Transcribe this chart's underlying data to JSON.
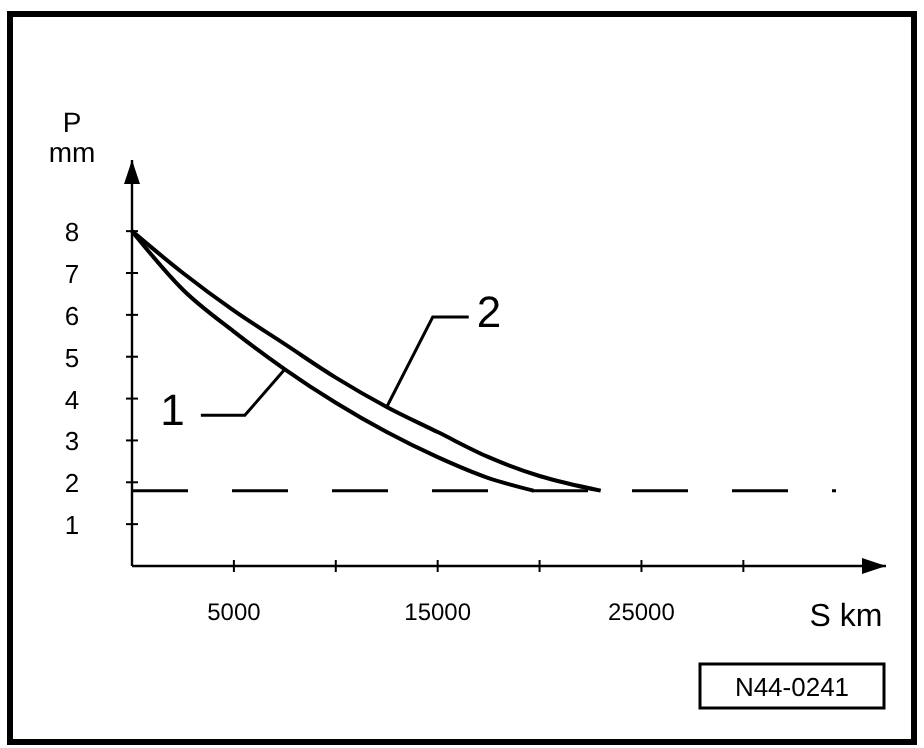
{
  "chart_data": {
    "type": "line",
    "xlabel": "S km",
    "ylabel": "P mm",
    "xlim": [
      0,
      37000
    ],
    "ylim": [
      0,
      9.7
    ],
    "xticks": [
      {
        "value": 5000,
        "label": "5000"
      },
      {
        "value": 10000,
        "label": null
      },
      {
        "value": 15000,
        "label": "15000"
      },
      {
        "value": 20000,
        "label": null
      },
      {
        "value": 25000,
        "label": "25000"
      },
      {
        "value": 30000,
        "label": null
      }
    ],
    "yticks": [
      1,
      2,
      3,
      4,
      5,
      6,
      7,
      8
    ],
    "grid": false,
    "legend": "left",
    "marker": "none",
    "line_style": "solid",
    "series": [
      {
        "name": "1",
        "color": "#000000",
        "x": [
          0,
          2500,
          5000,
          7500,
          10000,
          12500,
          15000,
          17500,
          19700
        ],
        "values": [
          8,
          6.6,
          5.6,
          4.7,
          3.9,
          3.2,
          2.6,
          2.1,
          1.8
        ]
      },
      {
        "name": "2",
        "color": "#000000",
        "x": [
          0,
          2500,
          5000,
          7500,
          10000,
          12500,
          15000,
          17500,
          20000,
          23000
        ],
        "values": [
          8,
          7.0,
          6.1,
          5.3,
          4.5,
          3.8,
          3.2,
          2.6,
          2.15,
          1.8
        ]
      }
    ],
    "ref_lines": [
      {
        "axis": "y",
        "value": 1.8,
        "color": "#000000",
        "line_style": "dashed"
      }
    ],
    "annotations": [
      "N44-0241"
    ]
  }
}
